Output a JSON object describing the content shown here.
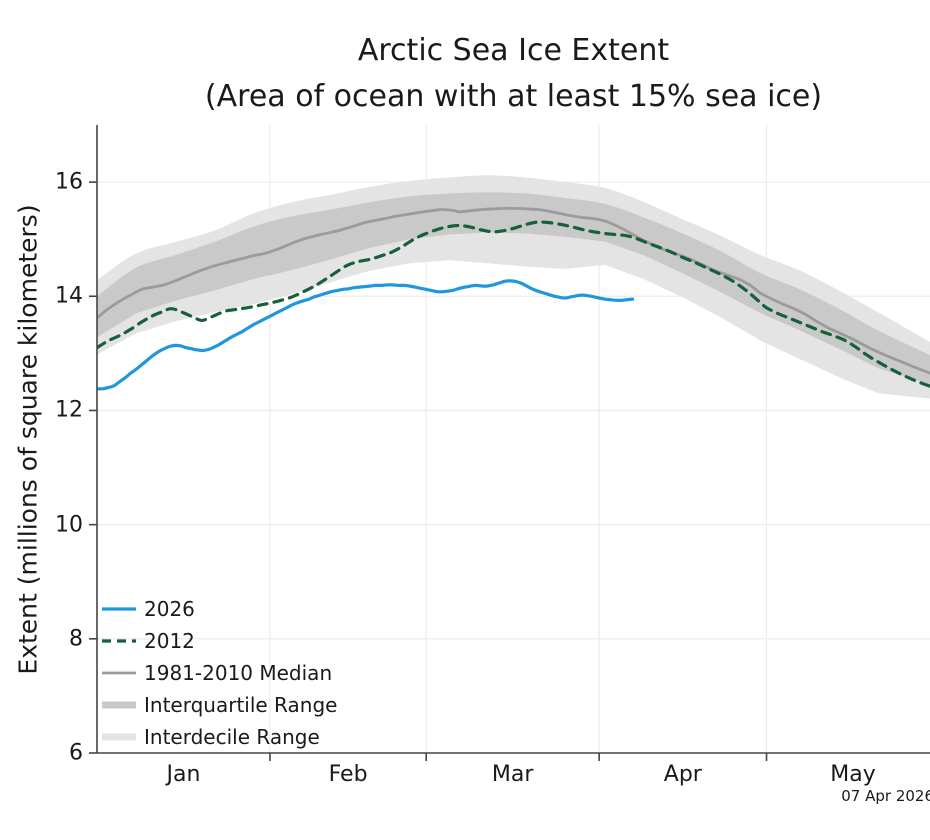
{
  "header": {
    "title": "Arctic Sea Ice Extent",
    "subtitle": "(Area of ocean with at least 15% sea ice)"
  },
  "y_axis": {
    "label": "Extent (millions of square kilometers)"
  },
  "datestamp": "07 Apr 2026",
  "colors": {
    "line_2026": "#1f97dd",
    "line_2012": "#16603a",
    "line_median": "#9b9b9b",
    "band_interquartile": "#c9c9c9",
    "band_interdecile": "#e4e4e4",
    "gridline": "#ededed",
    "axis": "#444444",
    "text": "#1a1a1a"
  },
  "legend": {
    "items": [
      {
        "id": "2026",
        "label": "2026",
        "type": "line",
        "style": "solid",
        "color": "#1f97dd",
        "width": 3.2
      },
      {
        "id": "2012",
        "label": "2012",
        "type": "line",
        "style": "dashed",
        "color": "#16603a",
        "width": 3.2
      },
      {
        "id": "median",
        "label": "1981-2010 Median",
        "type": "line",
        "style": "solid",
        "color": "#9b9b9b",
        "width": 2.8
      },
      {
        "id": "iqr",
        "label": "Interquartile Range",
        "type": "band",
        "style": "solid",
        "color": "#c9c9c9",
        "width": 7
      },
      {
        "id": "idr",
        "label": "Interdecile Range",
        "type": "band",
        "style": "solid",
        "color": "#e4e4e4",
        "width": 7
      }
    ]
  },
  "chart_data": {
    "type": "line",
    "title": "Arctic Sea Ice Extent",
    "subtitle": "(Area of ocean with at least 15% sea ice)",
    "xlabel": "",
    "ylabel": "Extent (millions of square kilometers)",
    "x_unit": "day of year (Jan 1 = 1)",
    "x_domain": [
      1,
      150.3
    ],
    "ylim": [
      6,
      17.0
    ],
    "grid": true,
    "legend_position": "lower-left",
    "yticks": [
      6,
      8,
      10,
      12,
      14,
      16
    ],
    "months": [
      {
        "label": "Jan",
        "start_day": 1
      },
      {
        "label": "Feb",
        "start_day": 32
      },
      {
        "label": "Mar",
        "start_day": 60
      },
      {
        "label": "Apr",
        "start_day": 91
      },
      {
        "label": "May",
        "start_day": 121
      },
      {
        "label": "",
        "start_day": 152
      }
    ],
    "series": [
      {
        "name": "2026",
        "color": "#1f97dd",
        "style": "solid",
        "width": 3.2,
        "points": [
          [
            1,
            12.38
          ],
          [
            2,
            12.38
          ],
          [
            3,
            12.4
          ],
          [
            4,
            12.43
          ],
          [
            5,
            12.5
          ],
          [
            6,
            12.57
          ],
          [
            7,
            12.65
          ],
          [
            8,
            12.72
          ],
          [
            9,
            12.8
          ],
          [
            10,
            12.88
          ],
          [
            11,
            12.96
          ],
          [
            12,
            13.03
          ],
          [
            13,
            13.08
          ],
          [
            14,
            13.12
          ],
          [
            15,
            13.14
          ],
          [
            16,
            13.13
          ],
          [
            17,
            13.1
          ],
          [
            18,
            13.08
          ],
          [
            19,
            13.06
          ],
          [
            20,
            13.05
          ],
          [
            21,
            13.07
          ],
          [
            22,
            13.11
          ],
          [
            23,
            13.16
          ],
          [
            24,
            13.22
          ],
          [
            25,
            13.28
          ],
          [
            26,
            13.33
          ],
          [
            27,
            13.38
          ],
          [
            28,
            13.44
          ],
          [
            29,
            13.5
          ],
          [
            30,
            13.55
          ],
          [
            31,
            13.6
          ],
          [
            32,
            13.65
          ],
          [
            33,
            13.7
          ],
          [
            34,
            13.75
          ],
          [
            35,
            13.8
          ],
          [
            36,
            13.85
          ],
          [
            37,
            13.89
          ],
          [
            38,
            13.92
          ],
          [
            39,
            13.95
          ],
          [
            40,
            13.99
          ],
          [
            41,
            14.02
          ],
          [
            42,
            14.05
          ],
          [
            43,
            14.08
          ],
          [
            44,
            14.1
          ],
          [
            45,
            14.12
          ],
          [
            46,
            14.13
          ],
          [
            47,
            14.15
          ],
          [
            48,
            14.16
          ],
          [
            49,
            14.17
          ],
          [
            50,
            14.18
          ],
          [
            51,
            14.19
          ],
          [
            52,
            14.19
          ],
          [
            53,
            14.2
          ],
          [
            54,
            14.2
          ],
          [
            55,
            14.19
          ],
          [
            56,
            14.19
          ],
          [
            57,
            14.18
          ],
          [
            58,
            14.16
          ],
          [
            59,
            14.14
          ],
          [
            60,
            14.12
          ],
          [
            61,
            14.1
          ],
          [
            62,
            14.08
          ],
          [
            63,
            14.08
          ],
          [
            64,
            14.09
          ],
          [
            65,
            14.11
          ],
          [
            66,
            14.14
          ],
          [
            67,
            14.16
          ],
          [
            68,
            14.18
          ],
          [
            69,
            14.19
          ],
          [
            70,
            14.18
          ],
          [
            71,
            14.18
          ],
          [
            72,
            14.2
          ],
          [
            73,
            14.23
          ],
          [
            74,
            14.26
          ],
          [
            75,
            14.27
          ],
          [
            76,
            14.26
          ],
          [
            77,
            14.23
          ],
          [
            78,
            14.18
          ],
          [
            79,
            14.13
          ],
          [
            80,
            14.09
          ],
          [
            81,
            14.06
          ],
          [
            82,
            14.03
          ],
          [
            83,
            14.0
          ],
          [
            84,
            13.98
          ],
          [
            85,
            13.97
          ],
          [
            86,
            13.99
          ],
          [
            87,
            14.01
          ],
          [
            88,
            14.02
          ],
          [
            89,
            14.01
          ],
          [
            90,
            13.99
          ],
          [
            91,
            13.97
          ],
          [
            92,
            13.95
          ],
          [
            93,
            13.94
          ],
          [
            94,
            13.93
          ],
          [
            95,
            13.93
          ],
          [
            96,
            13.94
          ],
          [
            97,
            13.95
          ]
        ]
      },
      {
        "name": "2012",
        "color": "#16603a",
        "style": "dashed",
        "width": 3.2,
        "points": [
          [
            1,
            13.1
          ],
          [
            3,
            13.22
          ],
          [
            5,
            13.31
          ],
          [
            7,
            13.42
          ],
          [
            9,
            13.55
          ],
          [
            11,
            13.66
          ],
          [
            13,
            13.74
          ],
          [
            14,
            13.78
          ],
          [
            15,
            13.77
          ],
          [
            17,
            13.69
          ],
          [
            19,
            13.6
          ],
          [
            20,
            13.58
          ],
          [
            22,
            13.66
          ],
          [
            24,
            13.74
          ],
          [
            26,
            13.77
          ],
          [
            28,
            13.8
          ],
          [
            30,
            13.84
          ],
          [
            32,
            13.88
          ],
          [
            34,
            13.93
          ],
          [
            36,
            13.99
          ],
          [
            38,
            14.08
          ],
          [
            40,
            14.18
          ],
          [
            42,
            14.3
          ],
          [
            44,
            14.43
          ],
          [
            46,
            14.55
          ],
          [
            48,
            14.61
          ],
          [
            50,
            14.65
          ],
          [
            52,
            14.71
          ],
          [
            54,
            14.78
          ],
          [
            56,
            14.89
          ],
          [
            58,
            15.01
          ],
          [
            60,
            15.1
          ],
          [
            62,
            15.17
          ],
          [
            64,
            15.22
          ],
          [
            66,
            15.24
          ],
          [
            68,
            15.21
          ],
          [
            70,
            15.16
          ],
          [
            72,
            15.13
          ],
          [
            74,
            15.15
          ],
          [
            76,
            15.2
          ],
          [
            78,
            15.26
          ],
          [
            80,
            15.3
          ],
          [
            82,
            15.29
          ],
          [
            84,
            15.26
          ],
          [
            86,
            15.22
          ],
          [
            88,
            15.17
          ],
          [
            90,
            15.13
          ],
          [
            92,
            15.1
          ],
          [
            94,
            15.08
          ],
          [
            96,
            15.06
          ],
          [
            98,
            15.0
          ],
          [
            100,
            14.92
          ],
          [
            102,
            14.85
          ],
          [
            104,
            14.77
          ],
          [
            106,
            14.68
          ],
          [
            108,
            14.6
          ],
          [
            110,
            14.51
          ],
          [
            112,
            14.42
          ],
          [
            114,
            14.32
          ],
          [
            116,
            14.2
          ],
          [
            118,
            14.05
          ],
          [
            120,
            13.88
          ],
          [
            121,
            13.8
          ],
          [
            123,
            13.7
          ],
          [
            125,
            13.62
          ],
          [
            127,
            13.54
          ],
          [
            129,
            13.46
          ],
          [
            131,
            13.38
          ],
          [
            133,
            13.31
          ],
          [
            135,
            13.23
          ],
          [
            137,
            13.11
          ],
          [
            139,
            12.97
          ],
          [
            141,
            12.85
          ],
          [
            143,
            12.74
          ],
          [
            145,
            12.64
          ],
          [
            147,
            12.55
          ],
          [
            149,
            12.47
          ],
          [
            151,
            12.4
          ]
        ]
      },
      {
        "name": "1981-2010 Median",
        "color": "#9b9b9b",
        "style": "solid",
        "width": 2.8,
        "points": [
          [
            1,
            13.62
          ],
          [
            3,
            13.78
          ],
          [
            5,
            13.91
          ],
          [
            7,
            14.02
          ],
          [
            9,
            14.12
          ],
          [
            11,
            14.16
          ],
          [
            13,
            14.2
          ],
          [
            15,
            14.27
          ],
          [
            17,
            14.35
          ],
          [
            19,
            14.43
          ],
          [
            21,
            14.5
          ],
          [
            23,
            14.56
          ],
          [
            25,
            14.61
          ],
          [
            27,
            14.66
          ],
          [
            29,
            14.71
          ],
          [
            31,
            14.75
          ],
          [
            33,
            14.81
          ],
          [
            35,
            14.89
          ],
          [
            37,
            14.97
          ],
          [
            39,
            15.03
          ],
          [
            41,
            15.08
          ],
          [
            43,
            15.12
          ],
          [
            45,
            15.17
          ],
          [
            47,
            15.23
          ],
          [
            49,
            15.29
          ],
          [
            51,
            15.33
          ],
          [
            53,
            15.37
          ],
          [
            55,
            15.41
          ],
          [
            57,
            15.44
          ],
          [
            59,
            15.47
          ],
          [
            61,
            15.5
          ],
          [
            63,
            15.52
          ],
          [
            65,
            15.5
          ],
          [
            66,
            15.48
          ],
          [
            68,
            15.5
          ],
          [
            70,
            15.52
          ],
          [
            72,
            15.53
          ],
          [
            74,
            15.54
          ],
          [
            76,
            15.54
          ],
          [
            78,
            15.53
          ],
          [
            80,
            15.52
          ],
          [
            82,
            15.49
          ],
          [
            84,
            15.45
          ],
          [
            86,
            15.41
          ],
          [
            88,
            15.38
          ],
          [
            90,
            15.36
          ],
          [
            92,
            15.32
          ],
          [
            94,
            15.24
          ],
          [
            96,
            15.14
          ],
          [
            98,
            15.03
          ],
          [
            100,
            14.93
          ],
          [
            102,
            14.84
          ],
          [
            104,
            14.77
          ],
          [
            106,
            14.7
          ],
          [
            108,
            14.62
          ],
          [
            110,
            14.53
          ],
          [
            112,
            14.44
          ],
          [
            114,
            14.37
          ],
          [
            116,
            14.3
          ],
          [
            118,
            14.2
          ],
          [
            120,
            14.05
          ],
          [
            122,
            13.95
          ],
          [
            124,
            13.86
          ],
          [
            126,
            13.78
          ],
          [
            128,
            13.68
          ],
          [
            130,
            13.56
          ],
          [
            132,
            13.45
          ],
          [
            134,
            13.36
          ],
          [
            136,
            13.27
          ],
          [
            138,
            13.17
          ],
          [
            140,
            13.07
          ],
          [
            142,
            12.98
          ],
          [
            144,
            12.9
          ],
          [
            146,
            12.82
          ],
          [
            148,
            12.74
          ],
          [
            151,
            12.63
          ]
        ]
      }
    ],
    "bands": [
      {
        "name": "Interdecile Range",
        "color": "#e4e4e4",
        "days": [
          1,
          8,
          15,
          22,
          29,
          36,
          43,
          50,
          57,
          64,
          71,
          78,
          85,
          92,
          99,
          106,
          113,
          120,
          127,
          134,
          141,
          151
        ],
        "top": [
          14.28,
          14.75,
          14.95,
          15.15,
          15.45,
          15.65,
          15.78,
          15.92,
          16.02,
          16.08,
          16.12,
          16.08,
          16.0,
          15.9,
          15.65,
          15.35,
          15.05,
          14.72,
          14.45,
          14.1,
          13.72,
          13.16
        ],
        "bottom": [
          12.98,
          13.35,
          13.56,
          13.72,
          13.86,
          14.04,
          14.25,
          14.45,
          14.58,
          14.63,
          14.58,
          14.52,
          14.48,
          14.55,
          14.3,
          13.98,
          13.62,
          13.22,
          12.9,
          12.58,
          12.3,
          12.2
        ]
      },
      {
        "name": "Interquartile Range",
        "color": "#c9c9c9",
        "days": [
          1,
          8,
          15,
          22,
          29,
          36,
          43,
          50,
          57,
          64,
          71,
          78,
          85,
          92,
          99,
          106,
          113,
          120,
          127,
          134,
          141,
          151
        ],
        "top": [
          14.0,
          14.5,
          14.72,
          14.95,
          15.22,
          15.4,
          15.52,
          15.65,
          15.75,
          15.8,
          15.82,
          15.8,
          15.72,
          15.62,
          15.38,
          15.1,
          14.78,
          14.4,
          14.12,
          13.78,
          13.4,
          12.94
        ],
        "bottom": [
          13.28,
          13.7,
          13.92,
          14.1,
          14.3,
          14.46,
          14.65,
          14.85,
          15.0,
          15.08,
          15.12,
          15.1,
          15.04,
          14.96,
          14.72,
          14.4,
          14.06,
          13.7,
          13.4,
          13.08,
          12.74,
          12.44
        ]
      }
    ]
  }
}
